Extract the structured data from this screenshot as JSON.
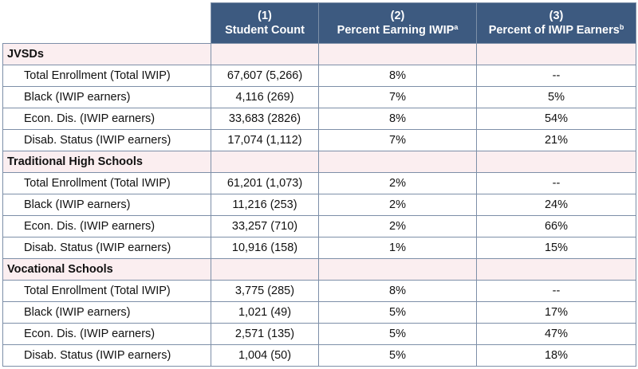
{
  "columns": [
    {
      "number": "(1)",
      "title": "Student Count",
      "sup": ""
    },
    {
      "number": "(2)",
      "title": "Percent Earning IWIP",
      "sup": "a"
    },
    {
      "number": "(3)",
      "title": "Percent of IWIP Earners",
      "sup": "b"
    }
  ],
  "sections": [
    {
      "title": "JVSDs",
      "rows": [
        {
          "label": "Total Enrollment (Total IWIP)",
          "count": "67,607 (5,266)",
          "pct_earning": "8%",
          "pct_of_earners": "--"
        },
        {
          "label": "Black (IWIP earners)",
          "count": "4,116 (269)",
          "pct_earning": "7%",
          "pct_of_earners": "5%"
        },
        {
          "label": "Econ. Dis. (IWIP earners)",
          "count": "33,683 (2826)",
          "pct_earning": "8%",
          "pct_of_earners": "54%"
        },
        {
          "label": "Disab. Status (IWIP earners)",
          "count": "17,074 (1,112)",
          "pct_earning": "7%",
          "pct_of_earners": "21%"
        }
      ]
    },
    {
      "title": "Traditional High Schools",
      "rows": [
        {
          "label": "Total Enrollment (Total IWIP)",
          "count": "61,201 (1,073)",
          "pct_earning": "2%",
          "pct_of_earners": "--"
        },
        {
          "label": "Black (IWIP earners)",
          "count": "11,216 (253)",
          "pct_earning": "2%",
          "pct_of_earners": "24%"
        },
        {
          "label": "Econ. Dis. (IWIP earners)",
          "count": "33,257 (710)",
          "pct_earning": "2%",
          "pct_of_earners": "66%"
        },
        {
          "label": "Disab. Status (IWIP earners)",
          "count": "10,916 (158)",
          "pct_earning": "1%",
          "pct_of_earners": "15%"
        }
      ]
    },
    {
      "title": "Vocational Schools",
      "rows": [
        {
          "label": "Total Enrollment (Total IWIP)",
          "count": "3,775 (285)",
          "pct_earning": "8%",
          "pct_of_earners": "--"
        },
        {
          "label": "Black (IWIP earners)",
          "count": "1,021 (49)",
          "pct_earning": "5%",
          "pct_of_earners": "17%"
        },
        {
          "label": "Econ. Dis. (IWIP earners)",
          "count": "2,571 (135)",
          "pct_earning": "5%",
          "pct_of_earners": "47%"
        },
        {
          "label": "Disab. Status (IWIP earners)",
          "count": "1,004 (50)",
          "pct_earning": "5%",
          "pct_of_earners": "18%"
        }
      ]
    }
  ]
}
